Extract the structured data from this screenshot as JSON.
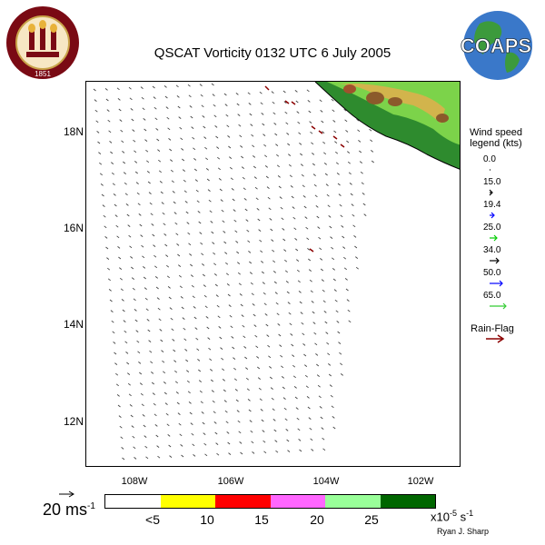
{
  "title": "QSCAT Vorticity 0132 UTC 6 July 2005",
  "logos": {
    "university_seal": {
      "text": "FLORIDA STATE UNIVERSITY",
      "year": "1851"
    },
    "coaps": {
      "text": "COAPS"
    }
  },
  "map": {
    "lat_labels": [
      "18N",
      "16N",
      "14N",
      "12N"
    ],
    "lon_labels": [
      "108W",
      "106W",
      "104W",
      "102W"
    ],
    "land_color": "#2e8b2e",
    "rain_flag_color": "#8b0000"
  },
  "wind_legend": {
    "title_line1": "Wind speed",
    "title_line2": "legend (kts)",
    "entries": [
      {
        "label": "0.0",
        "color": "#000000"
      },
      {
        "label": "15.0",
        "color": "#000000"
      },
      {
        "label": "19.4",
        "color": "#0000ff"
      },
      {
        "label": "25.0",
        "color": "#00cc00"
      },
      {
        "label": "34.0",
        "color": "#000000"
      },
      {
        "label": "50.0",
        "color": "#0000ff"
      },
      {
        "label": "65.0",
        "color": "#33cc33"
      }
    ],
    "rain_flag_label": "Rain-Flag"
  },
  "colorbar": {
    "colors": [
      "#ffffff",
      "#ffff00",
      "#ff0000",
      "#ff66ff",
      "#99ff99",
      "#006600"
    ],
    "labels": [
      "<5",
      "10",
      "15",
      "20",
      "25"
    ],
    "units_main": "x10",
    "units_exp": "-5",
    "units_tail": " s",
    "units_tail_exp": "-1"
  },
  "scale": {
    "main": "20 ms",
    "exp": "-1"
  },
  "author": "Ryan J. Sharp"
}
